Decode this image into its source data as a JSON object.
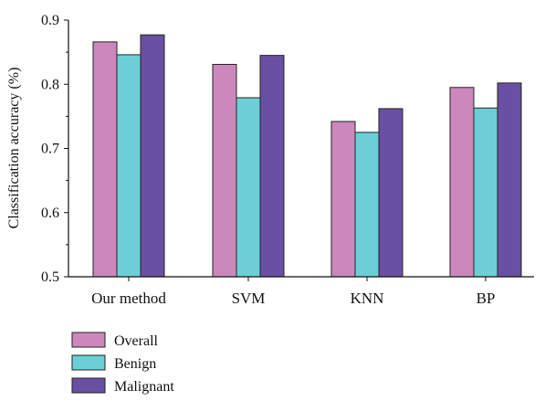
{
  "chart_data": {
    "type": "bar",
    "title": "",
    "xlabel": "",
    "ylabel": "Classification accuracy (%)",
    "ylim": [
      0.5,
      0.9
    ],
    "yticks": [
      "0.5",
      "0.6",
      "0.7",
      "0.8",
      "0.9"
    ],
    "categories": [
      "Our method",
      "SVM",
      "KNN",
      "BP"
    ],
    "series": [
      {
        "name": "Overall",
        "color": "#cc88bc",
        "values": [
          0.866,
          0.831,
          0.742,
          0.795
        ]
      },
      {
        "name": "Benign",
        "color": "#6ccfd8",
        "values": [
          0.846,
          0.779,
          0.725,
          0.763
        ]
      },
      {
        "name": "Malignant",
        "color": "#6a50a2",
        "values": [
          0.877,
          0.845,
          0.762,
          0.802
        ]
      }
    ],
    "legend_position": "bottom-left",
    "grid": false
  }
}
